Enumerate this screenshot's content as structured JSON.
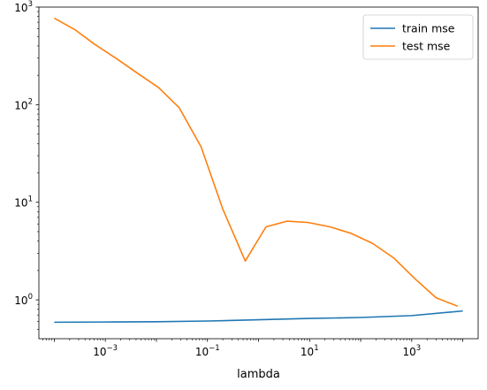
{
  "chart_data": {
    "type": "line",
    "xscale": "log",
    "yscale": "log",
    "xlabel": "lambda",
    "ylabel": "",
    "xlim": [
      5e-05,
      20000
    ],
    "ylim": [
      0.4,
      1000
    ],
    "x_ticks": [
      {
        "value": 0.001,
        "base": "10",
        "exp": "−3"
      },
      {
        "value": 0.1,
        "base": "10",
        "exp": "−1"
      },
      {
        "value": 10,
        "base": "10",
        "exp": "1"
      },
      {
        "value": 1000,
        "base": "10",
        "exp": "3"
      }
    ],
    "y_ticks": [
      {
        "value": 1,
        "base": "10",
        "exp": "0"
      },
      {
        "value": 10,
        "base": "10",
        "exp": "1"
      },
      {
        "value": 100,
        "base": "10",
        "exp": "2"
      },
      {
        "value": 1000,
        "base": "10",
        "exp": "3"
      }
    ],
    "grid": false,
    "legend_position": "upper right",
    "x": [
      0.0001,
      0.000193,
      0.000373,
      0.00072,
      0.00139,
      0.00268,
      0.00518,
      0.01,
      0.0193,
      0.0373,
      0.072,
      0.139,
      0.268,
      0.518,
      1.0,
      1.93,
      3.73,
      7.2,
      13.9,
      26.8,
      51.8,
      100,
      193,
      373,
      720,
      1390,
      2680,
      5180,
      10000
    ],
    "series": [
      {
        "name": "train mse",
        "color": "#1f77b4",
        "points": [
          [
            0.0001,
            0.59
          ],
          [
            0.001,
            0.593
          ],
          [
            0.01,
            0.597
          ],
          [
            0.1,
            0.607
          ],
          [
            1.0,
            0.625
          ],
          [
            10,
            0.645
          ],
          [
            100,
            0.66
          ],
          [
            1000,
            0.69
          ],
          [
            10000,
            0.77
          ]
        ]
      },
      {
        "name": "test mse",
        "color": "#ff7f0e",
        "points": [
          [
            0.0001,
            770
          ],
          [
            0.00025,
            590
          ],
          [
            0.0006,
            420
          ],
          [
            0.0016,
            300
          ],
          [
            0.004,
            215
          ],
          [
            0.011,
            150
          ],
          [
            0.028,
            93
          ],
          [
            0.075,
            37
          ],
          [
            0.2,
            8.5
          ],
          [
            0.55,
            2.5
          ],
          [
            1.4,
            5.6
          ],
          [
            3.6,
            6.4
          ],
          [
            9.5,
            6.2
          ],
          [
            25,
            5.6
          ],
          [
            65,
            4.8
          ],
          [
            170,
            3.8
          ],
          [
            440,
            2.7
          ],
          [
            1150,
            1.65
          ],
          [
            3000,
            1.05
          ],
          [
            8000,
            0.86
          ]
        ]
      }
    ]
  }
}
